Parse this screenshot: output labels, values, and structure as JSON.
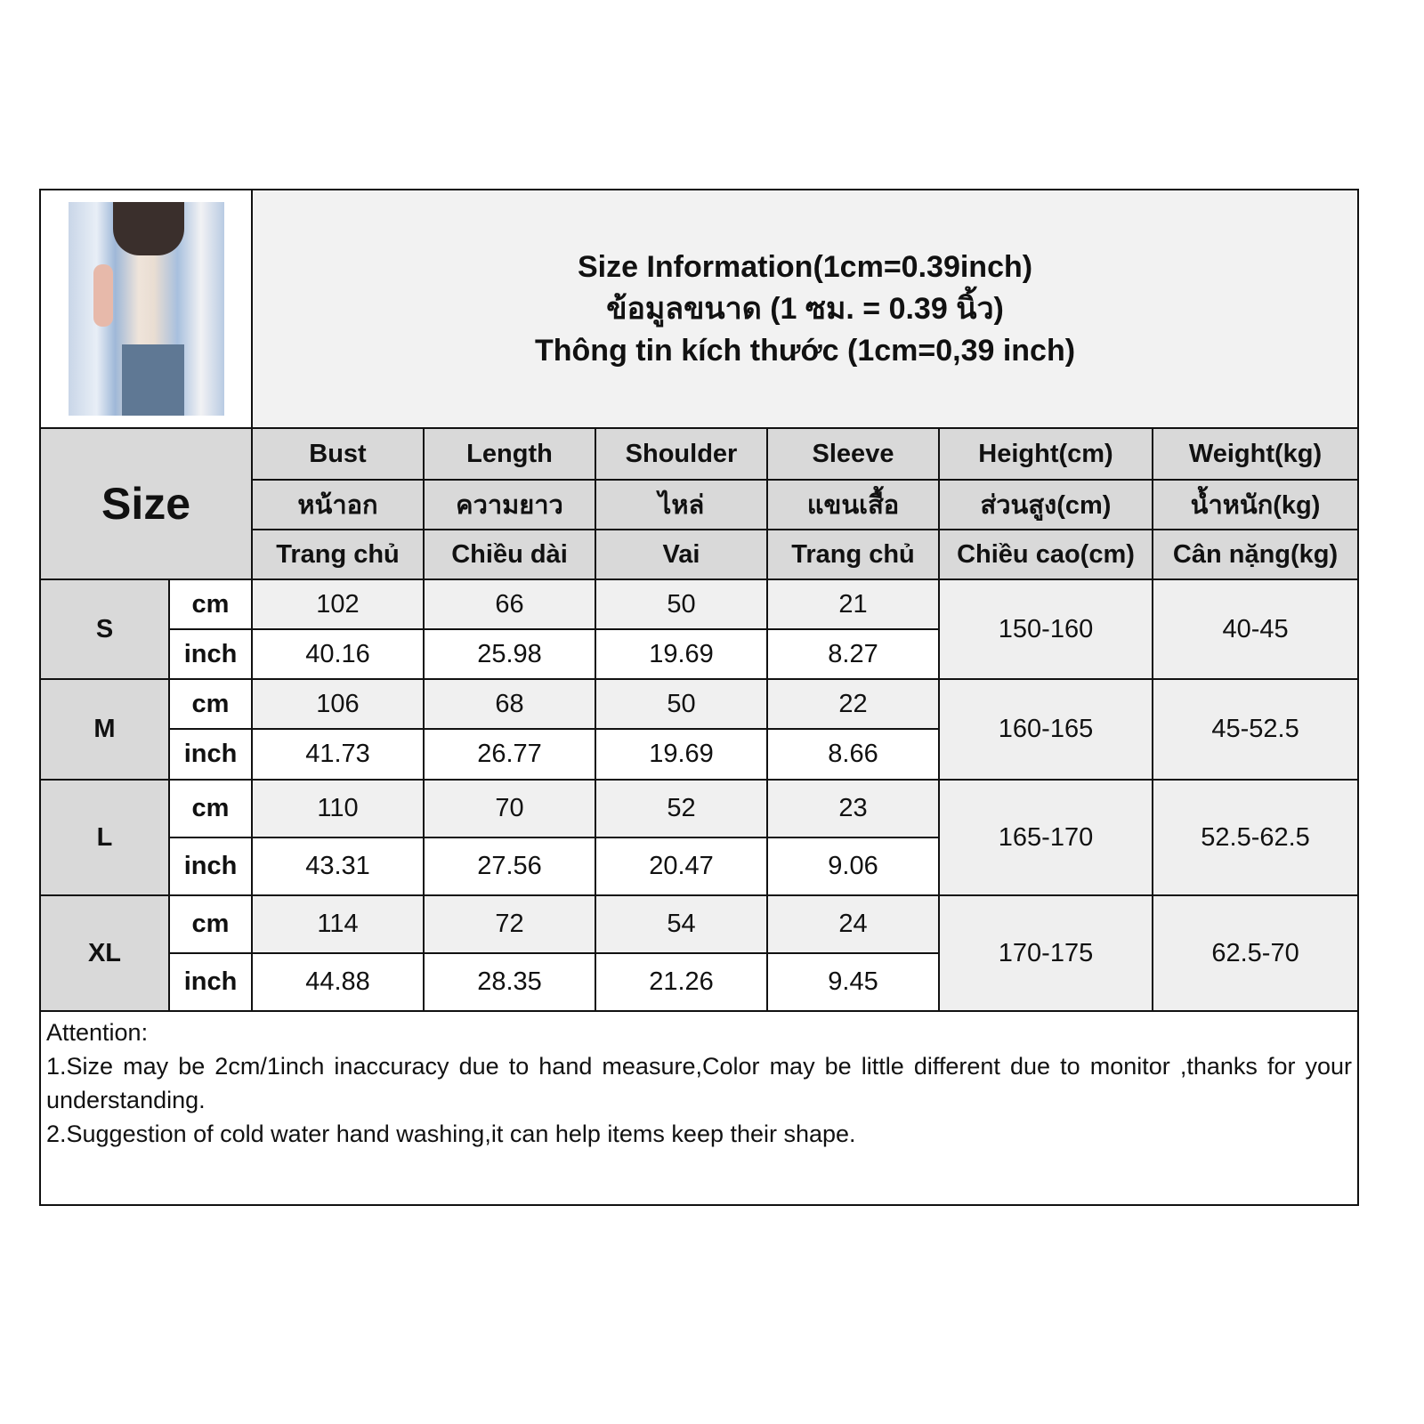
{
  "title": {
    "en": "Size Information(1cm=0.39inch)",
    "th": "ข้อมูลขนาด (1 ซม. = 0.39 นิ้ว)",
    "vi": "Thông tin kích thước (1cm=0,39 inch)"
  },
  "size_label": "Size",
  "columns": [
    {
      "en": "Bust",
      "th": "หน้าอก",
      "vi": "Trang chủ"
    },
    {
      "en": "Length",
      "th": "ความยาว",
      "vi": "Chiều dài"
    },
    {
      "en": "Shoulder",
      "th": "ไหล่",
      "vi": "Vai"
    },
    {
      "en": "Sleeve",
      "th": "แขนเสื้อ",
      "vi": "Trang chủ"
    },
    {
      "en": "Height(cm)",
      "th": "ส่วนสูง(cm)",
      "vi": "Chiều cao(cm)"
    },
    {
      "en": "Weight(kg)",
      "th": "น้ำหนัก(kg)",
      "vi": "Cân nặng(kg)"
    }
  ],
  "units": {
    "cm": "cm",
    "inch": "inch"
  },
  "sizes": [
    {
      "size": "S",
      "cm": [
        "102",
        "66",
        "50",
        "21"
      ],
      "inch": [
        "40.16",
        "25.98",
        "19.69",
        "8.27"
      ],
      "height": "150-160",
      "weight": "40-45"
    },
    {
      "size": "M",
      "cm": [
        "106",
        "68",
        "50",
        "22"
      ],
      "inch": [
        "41.73",
        "26.77",
        "19.69",
        "8.66"
      ],
      "height": "160-165",
      "weight": "45-52.5"
    },
    {
      "size": "L",
      "cm": [
        "110",
        "70",
        "52",
        "23"
      ],
      "inch": [
        "43.31",
        "27.56",
        "20.47",
        "9.06"
      ],
      "height": "165-170",
      "weight": "52.5-62.5"
    },
    {
      "size": "XL",
      "cm": [
        "114",
        "72",
        "54",
        "24"
      ],
      "inch": [
        "44.88",
        "28.35",
        "21.26",
        "9.45"
      ],
      "height": "170-175",
      "weight": "62.5-70"
    }
  ],
  "attention": {
    "heading": "Attention:",
    "notes": [
      "1.Size may be 2cm/1inch inaccuracy due to hand measure,Color may be little different due to monitor ,thanks for your understanding.",
      "2.Suggestion of cold water hand washing,it can help items keep their shape."
    ]
  }
}
